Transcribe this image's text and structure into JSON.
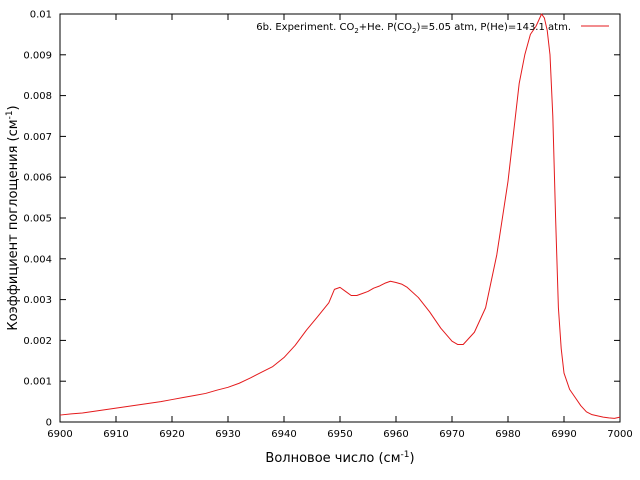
{
  "chart_data": {
    "type": "line",
    "xlabel": "Волновое число (см",
    "xlabel_sup": "-1",
    "xlabel_end": ")",
    "ylabel": "Коэффициент поглощения (см",
    "ylabel_sup": "-1",
    "ylabel_end": ")",
    "xlim": [
      6900,
      7000
    ],
    "ylim": [
      0,
      0.01
    ],
    "xticks": [
      "6900",
      "6910",
      "6920",
      "6930",
      "6940",
      "6950",
      "6960",
      "6970",
      "6980",
      "6990",
      "7000"
    ],
    "xtick_values": [
      6900,
      6910,
      6920,
      6930,
      6940,
      6950,
      6960,
      6970,
      6980,
      6990,
      7000
    ],
    "yticks": [
      "0",
      "0.001",
      "0.002",
      "0.003",
      "0.004",
      "0.005",
      "0.006",
      "0.007",
      "0.008",
      "0.009",
      "0.01"
    ],
    "ytick_values": [
      0,
      0.001,
      0.002,
      0.003,
      0.004,
      0.005,
      0.006,
      0.007,
      0.008,
      0.009,
      0.01
    ],
    "grid": false,
    "legend_position": "top-right",
    "series": [
      {
        "name": "6b. Experiment. CO2+He. P(CO2)=5.05 atm, P(He)=143.1 atm.",
        "legend": {
          "p1": "6b. Experiment. CO",
          "s1": "2",
          "p2": "+He. P(CO",
          "s2": "2",
          "p3": ")=5.05 atm, P(He)=143.1 atm."
        },
        "color": "#e41a1c",
        "x": [
          6900,
          6902,
          6904,
          6906,
          6908,
          6910,
          6912,
          6914,
          6916,
          6918,
          6920,
          6922,
          6924,
          6926,
          6928,
          6930,
          6932,
          6934,
          6936,
          6938,
          6940,
          6942,
          6944,
          6946,
          6948,
          6949,
          6950,
          6951,
          6952,
          6953,
          6954,
          6955,
          6956,
          6957,
          6958,
          6959,
          6960,
          6961,
          6962,
          6964,
          6966,
          6968,
          6970,
          6971,
          6972,
          6974,
          6976,
          6978,
          6980,
          6982,
          6983,
          6984,
          6985,
          6986,
          6986.5,
          6987,
          6987.5,
          6988,
          6988.5,
          6989,
          6989.5,
          6990,
          6991,
          6992,
          6993,
          6994,
          6995,
          6996,
          6997,
          6998,
          6999,
          7000
        ],
        "y": [
          0.00017,
          0.0002,
          0.00022,
          0.00026,
          0.0003,
          0.00034,
          0.00038,
          0.00042,
          0.00046,
          0.0005,
          0.00055,
          0.0006,
          0.00065,
          0.0007,
          0.00078,
          0.00085,
          0.00095,
          0.00108,
          0.00122,
          0.00136,
          0.00158,
          0.00188,
          0.00225,
          0.00258,
          0.00292,
          0.00325,
          0.0033,
          0.0032,
          0.0031,
          0.0031,
          0.00315,
          0.0032,
          0.00328,
          0.00333,
          0.0034,
          0.00345,
          0.00342,
          0.00338,
          0.0033,
          0.00305,
          0.0027,
          0.0023,
          0.00198,
          0.0019,
          0.0019,
          0.0022,
          0.0028,
          0.0041,
          0.0059,
          0.0083,
          0.009,
          0.0095,
          0.0097,
          0.01,
          0.0099,
          0.0096,
          0.009,
          0.0075,
          0.005,
          0.0028,
          0.0018,
          0.0012,
          0.0008,
          0.0006,
          0.0004,
          0.00025,
          0.00018,
          0.00015,
          0.00012,
          0.0001,
          9e-05,
          0.00012
        ]
      }
    ]
  }
}
